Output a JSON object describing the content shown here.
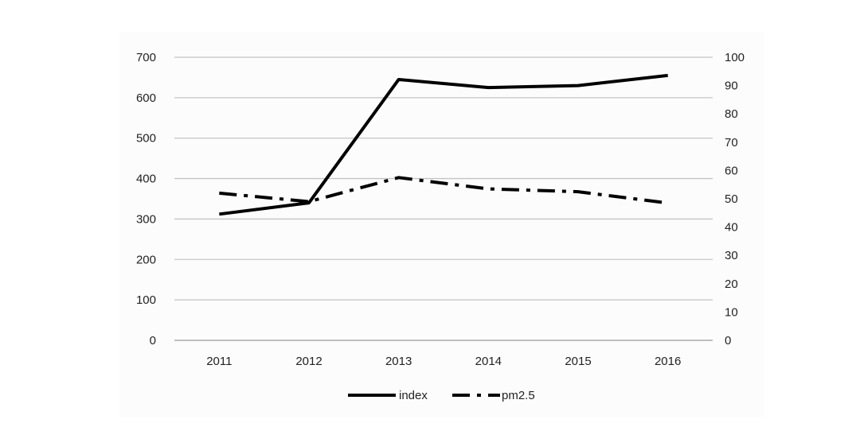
{
  "chart_data": {
    "type": "line",
    "categories": [
      "2011",
      "2012",
      "2013",
      "2014",
      "2015",
      "2016"
    ],
    "series": [
      {
        "name": "index",
        "axis": "left",
        "style": "solid",
        "color": "#000000",
        "values": [
          312,
          340,
          645,
          625,
          630,
          655
        ]
      },
      {
        "name": "pm2.5",
        "axis": "right",
        "style": "dash-dot",
        "color": "#000000",
        "values": [
          52,
          49,
          57.5,
          53.5,
          52.5,
          48.5
        ]
      }
    ],
    "y_left": {
      "min": 0,
      "max": 700,
      "step": 100,
      "ticks": [
        "0",
        "100",
        "200",
        "300",
        "400",
        "500",
        "600",
        "700"
      ]
    },
    "y_right": {
      "min": 0,
      "max": 100,
      "step": 10,
      "ticks": [
        "0",
        "10",
        "20",
        "30",
        "40",
        "50",
        "60",
        "70",
        "80",
        "90",
        "100"
      ]
    },
    "grid": true,
    "legend_position": "bottom"
  }
}
